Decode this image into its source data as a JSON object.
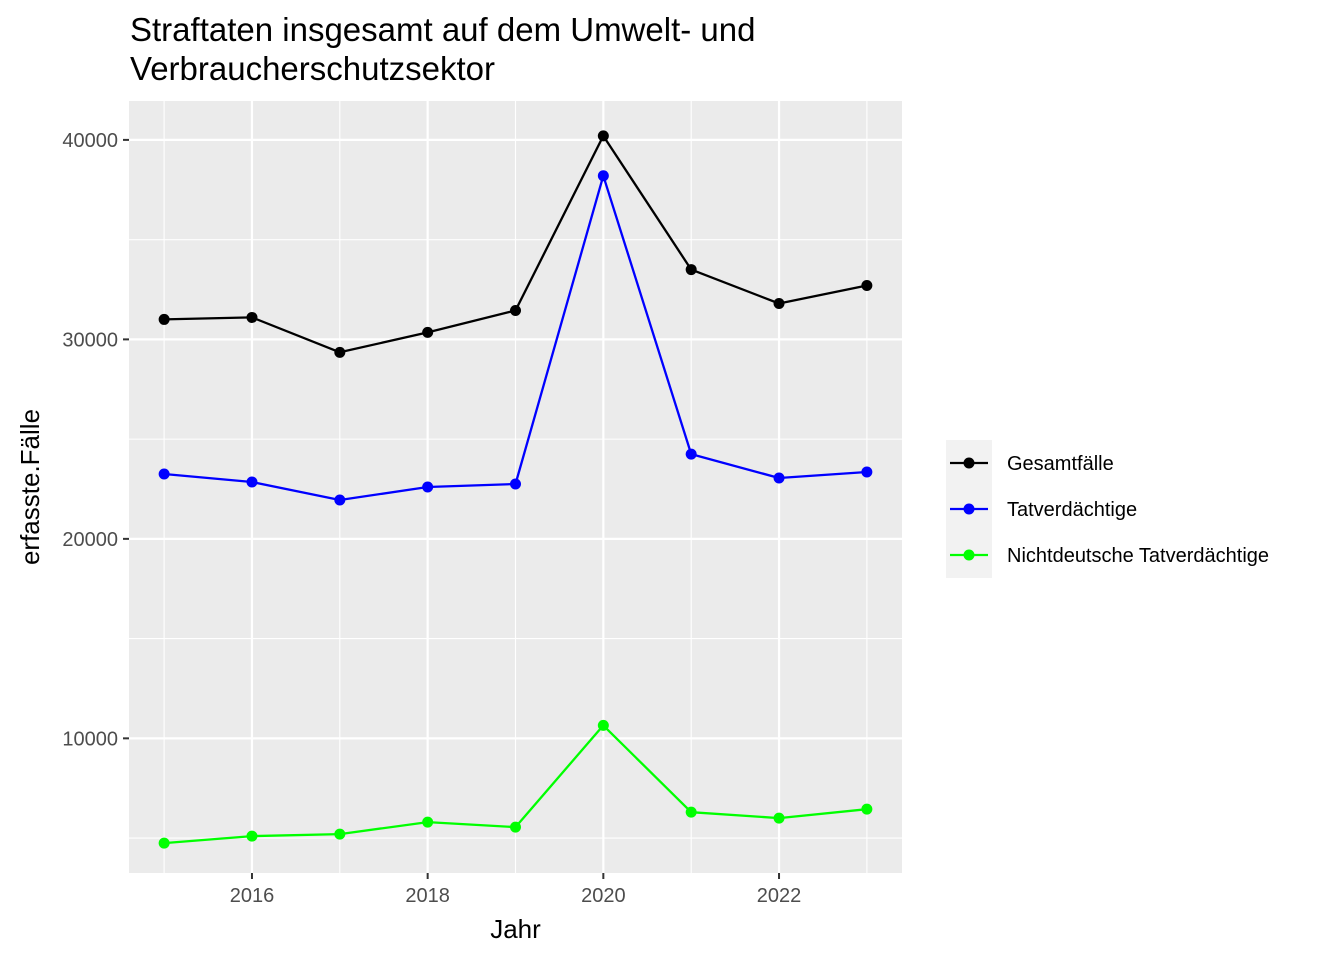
{
  "chart_data": {
    "type": "line",
    "title": [
      "Straftaten insgesamt auf dem Umwelt- und",
      "Verbraucherschutzsektor"
    ],
    "xlabel": "Jahr",
    "ylabel": "erfasste.Fälle",
    "x": [
      2015,
      2016,
      2017,
      2018,
      2019,
      2020,
      2021,
      2022,
      2023
    ],
    "xlim": [
      2014.6,
      2023.4
    ],
    "ylim": [
      3250,
      41950
    ],
    "x_ticks": [
      2016,
      2018,
      2020,
      2022
    ],
    "y_ticks": [
      10000,
      20000,
      30000,
      40000
    ],
    "x_tick_labels": [
      "2016",
      "2018",
      "2020",
      "2022"
    ],
    "y_tick_labels": [
      "10000",
      "20000",
      "30000",
      "40000"
    ],
    "grid": true,
    "legend_position": "right",
    "series": [
      {
        "name": "Gesamtfälle",
        "color": "#000000",
        "values": [
          31000,
          31100,
          29350,
          30350,
          31450,
          40200,
          33500,
          31800,
          32700
        ]
      },
      {
        "name": "Tatverdächtige",
        "color": "#0000ff",
        "values": [
          23250,
          22850,
          21950,
          22600,
          22750,
          38200,
          24250,
          23050,
          23350
        ]
      },
      {
        "name": "Nichtdeutsche Tatverdächtige",
        "color": "#00ff00",
        "values": [
          4750,
          5100,
          5200,
          5800,
          5550,
          10650,
          6300,
          6000,
          6450
        ]
      }
    ]
  }
}
